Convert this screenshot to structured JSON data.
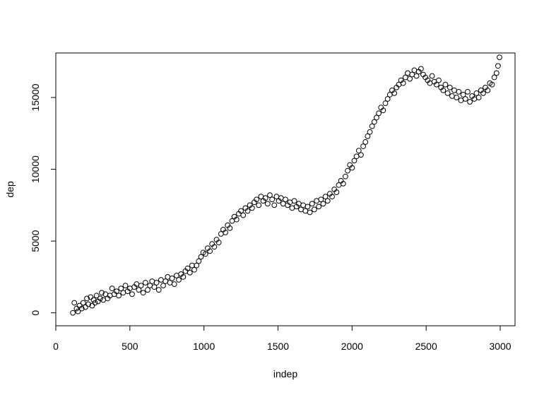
{
  "chart_data": {
    "type": "scatter",
    "title": "",
    "xlabel": "indep",
    "ylabel": "dep",
    "xlim": [
      0,
      3100
    ],
    "ylim": [
      -900,
      18100
    ],
    "x_ticks": [
      0,
      500,
      1000,
      1500,
      2000,
      2500,
      3000
    ],
    "y_ticks": [
      0,
      5000,
      10000,
      15000
    ],
    "x_tick_labels": [
      "0",
      "500",
      "1000",
      "1500",
      "2000",
      "2500",
      "3000"
    ],
    "y_tick_labels": [
      "0",
      "5000",
      "10000",
      "15000"
    ],
    "grid": false,
    "legend": "none",
    "marker": "open-circle",
    "color": "#000000",
    "points": [
      [
        115,
        0
      ],
      [
        125,
        700
      ],
      [
        140,
        300
      ],
      [
        150,
        100
      ],
      [
        160,
        500
      ],
      [
        175,
        300
      ],
      [
        185,
        700
      ],
      [
        200,
        400
      ],
      [
        210,
        1000
      ],
      [
        220,
        600
      ],
      [
        235,
        1100
      ],
      [
        245,
        500
      ],
      [
        255,
        900
      ],
      [
        265,
        700
      ],
      [
        275,
        1200
      ],
      [
        285,
        800
      ],
      [
        300,
        1000
      ],
      [
        310,
        1400
      ],
      [
        320,
        900
      ],
      [
        335,
        1300
      ],
      [
        350,
        1000
      ],
      [
        365,
        1200
      ],
      [
        380,
        1700
      ],
      [
        395,
        1300
      ],
      [
        410,
        1500
      ],
      [
        425,
        1200
      ],
      [
        440,
        1700
      ],
      [
        455,
        1400
      ],
      [
        470,
        1900
      ],
      [
        485,
        1500
      ],
      [
        500,
        1700
      ],
      [
        515,
        1300
      ],
      [
        530,
        1800
      ],
      [
        545,
        2000
      ],
      [
        560,
        1600
      ],
      [
        575,
        1900
      ],
      [
        590,
        1400
      ],
      [
        605,
        2100
      ],
      [
        620,
        1600
      ],
      [
        635,
        1900
      ],
      [
        650,
        2200
      ],
      [
        665,
        1800
      ],
      [
        680,
        2100
      ],
      [
        695,
        1600
      ],
      [
        710,
        2300
      ],
      [
        725,
        1900
      ],
      [
        740,
        2200
      ],
      [
        755,
        2500
      ],
      [
        770,
        2100
      ],
      [
        785,
        2400
      ],
      [
        800,
        2000
      ],
      [
        815,
        2600
      ],
      [
        830,
        2300
      ],
      [
        845,
        2700
      ],
      [
        860,
        2500
      ],
      [
        875,
        2900
      ],
      [
        890,
        3100
      ],
      [
        905,
        2800
      ],
      [
        920,
        3300
      ],
      [
        935,
        3000
      ],
      [
        950,
        3300
      ],
      [
        965,
        3600
      ],
      [
        980,
        3900
      ],
      [
        995,
        4200
      ],
      [
        1010,
        4100
      ],
      [
        1025,
        4500
      ],
      [
        1040,
        4300
      ],
      [
        1055,
        4800
      ],
      [
        1070,
        4600
      ],
      [
        1085,
        5100
      ],
      [
        1100,
        4900
      ],
      [
        1115,
        5500
      ],
      [
        1130,
        5800
      ],
      [
        1145,
        5600
      ],
      [
        1160,
        6100
      ],
      [
        1175,
        5900
      ],
      [
        1190,
        6400
      ],
      [
        1205,
        6700
      ],
      [
        1220,
        6500
      ],
      [
        1235,
        6900
      ],
      [
        1250,
        7100
      ],
      [
        1265,
        6800
      ],
      [
        1280,
        7300
      ],
      [
        1295,
        7100
      ],
      [
        1310,
        7500
      ],
      [
        1325,
        7300
      ],
      [
        1340,
        7700
      ],
      [
        1355,
        7900
      ],
      [
        1370,
        7500
      ],
      [
        1385,
        8100
      ],
      [
        1400,
        7800
      ],
      [
        1415,
        8000
      ],
      [
        1430,
        7600
      ],
      [
        1445,
        8200
      ],
      [
        1460,
        7900
      ],
      [
        1475,
        7500
      ],
      [
        1490,
        8100
      ],
      [
        1505,
        7800
      ],
      [
        1520,
        8000
      ],
      [
        1535,
        7600
      ],
      [
        1550,
        7900
      ],
      [
        1565,
        7500
      ],
      [
        1580,
        7700
      ],
      [
        1595,
        7300
      ],
      [
        1610,
        7800
      ],
      [
        1625,
        7400
      ],
      [
        1640,
        7600
      ],
      [
        1655,
        7200
      ],
      [
        1670,
        7500
      ],
      [
        1685,
        7100
      ],
      [
        1700,
        7400
      ],
      [
        1715,
        7000
      ],
      [
        1730,
        7600
      ],
      [
        1745,
        7200
      ],
      [
        1760,
        7800
      ],
      [
        1775,
        7400
      ],
      [
        1790,
        7900
      ],
      [
        1805,
        7600
      ],
      [
        1820,
        8100
      ],
      [
        1835,
        7800
      ],
      [
        1850,
        8300
      ],
      [
        1865,
        8100
      ],
      [
        1880,
        8600
      ],
      [
        1895,
        8400
      ],
      [
        1910,
        8900
      ],
      [
        1925,
        9200
      ],
      [
        1940,
        9000
      ],
      [
        1955,
        9500
      ],
      [
        1970,
        9900
      ],
      [
        1985,
        10300
      ],
      [
        2000,
        10100
      ],
      [
        2015,
        10600
      ],
      [
        2030,
        10900
      ],
      [
        2045,
        11300
      ],
      [
        2060,
        11000
      ],
      [
        2075,
        11600
      ],
      [
        2090,
        11900
      ],
      [
        2105,
        12300
      ],
      [
        2120,
        12600
      ],
      [
        2135,
        13000
      ],
      [
        2150,
        13300
      ],
      [
        2165,
        13600
      ],
      [
        2180,
        13900
      ],
      [
        2195,
        14300
      ],
      [
        2210,
        14100
      ],
      [
        2225,
        14600
      ],
      [
        2240,
        14900
      ],
      [
        2255,
        15200
      ],
      [
        2270,
        15500
      ],
      [
        2285,
        15300
      ],
      [
        2300,
        15700
      ],
      [
        2315,
        15900
      ],
      [
        2330,
        16200
      ],
      [
        2345,
        16000
      ],
      [
        2360,
        16400
      ],
      [
        2375,
        16700
      ],
      [
        2390,
        16300
      ],
      [
        2405,
        16600
      ],
      [
        2420,
        16900
      ],
      [
        2435,
        16500
      ],
      [
        2450,
        16800
      ],
      [
        2465,
        17000
      ],
      [
        2480,
        16600
      ],
      [
        2495,
        16400
      ],
      [
        2510,
        16200
      ],
      [
        2525,
        16000
      ],
      [
        2540,
        16500
      ],
      [
        2555,
        16100
      ],
      [
        2570,
        15900
      ],
      [
        2585,
        16200
      ],
      [
        2600,
        15700
      ],
      [
        2615,
        15500
      ],
      [
        2630,
        15900
      ],
      [
        2645,
        15300
      ],
      [
        2660,
        15700
      ],
      [
        2675,
        15100
      ],
      [
        2690,
        15500
      ],
      [
        2705,
        15000
      ],
      [
        2720,
        15400
      ],
      [
        2735,
        14800
      ],
      [
        2750,
        15200
      ],
      [
        2765,
        14900
      ],
      [
        2780,
        15400
      ],
      [
        2795,
        14700
      ],
      [
        2810,
        15100
      ],
      [
        2825,
        14900
      ],
      [
        2840,
        15300
      ],
      [
        2855,
        15000
      ],
      [
        2870,
        15500
      ],
      [
        2885,
        15300
      ],
      [
        2900,
        15700
      ],
      [
        2915,
        15500
      ],
      [
        2930,
        16000
      ],
      [
        2945,
        15900
      ],
      [
        2960,
        16400
      ],
      [
        2975,
        16700
      ],
      [
        2985,
        17200
      ],
      [
        2995,
        17800
      ]
    ]
  }
}
